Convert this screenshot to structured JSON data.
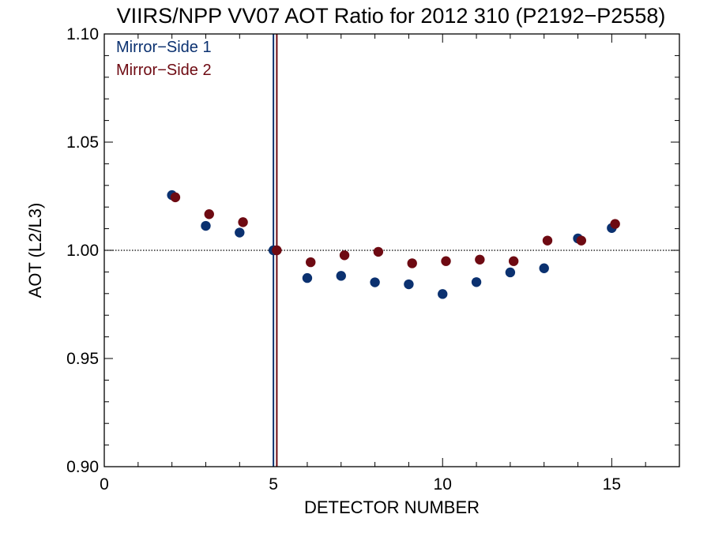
{
  "chart_data": {
    "type": "scatter",
    "title": "VIIRS/NPP VV07 AOT Ratio for 2012 310 (P2192−P2558)",
    "xlabel": "DETECTOR NUMBER",
    "ylabel": "AOT (L2/L3)",
    "xlim": [
      0,
      17
    ],
    "ylim": [
      0.9,
      1.1
    ],
    "x_ticks": [
      0,
      5,
      10,
      15
    ],
    "x_tick_labels": [
      "0",
      "5",
      "10",
      "15"
    ],
    "y_ticks": [
      0.9,
      0.95,
      1.0,
      1.05,
      1.1
    ],
    "y_tick_labels": [
      "0.90",
      "0.95",
      "1.00",
      "1.05",
      "1.10"
    ],
    "reference_line_y": 1.0,
    "legend_position": "top-left",
    "series": [
      {
        "name": "Mirror−Side 1",
        "color": "#0b3170",
        "marker_line_x": 5.0,
        "x": [
          2,
          3,
          4,
          5,
          6,
          7,
          8,
          9,
          10,
          11,
          12,
          13,
          14,
          15
        ],
        "y": [
          1.0255,
          1.0113,
          1.0082,
          1.0,
          0.9872,
          0.9882,
          0.9852,
          0.9843,
          0.9798,
          0.9853,
          0.9898,
          0.9917,
          1.0055,
          1.0103
        ]
      },
      {
        "name": "Mirror−Side 2",
        "color": "#6e0a12",
        "marker_line_x": 5.1,
        "x": [
          2.1,
          3.1,
          4.1,
          5.1,
          6.1,
          7.1,
          8.1,
          9.1,
          10.1,
          11.1,
          12.1,
          13.1,
          14.1,
          15.1
        ],
        "y": [
          1.0245,
          1.0167,
          1.013,
          1.0,
          0.9945,
          0.9977,
          0.9993,
          0.994,
          0.995,
          0.9957,
          0.995,
          1.0045,
          1.0045,
          1.0122
        ]
      }
    ]
  }
}
